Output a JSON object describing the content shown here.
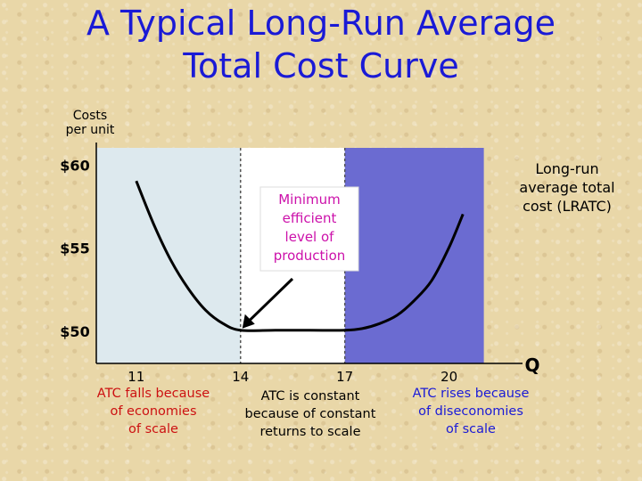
{
  "title": [
    "A Typical Long-Run Average",
    "Total Cost Curve"
  ],
  "chart_data": {
    "type": "line",
    "title": "A Typical Long-Run Average Total Cost Curve",
    "ylabel": [
      "Costs",
      "per unit"
    ],
    "xlabel": "Q",
    "x_ticks": [
      11,
      14,
      17,
      20
    ],
    "y_ticks": [
      50,
      55,
      60
    ],
    "y_tick_labels": [
      "$50",
      "$55",
      "$60"
    ],
    "xlim": [
      9.85,
      21.6
    ],
    "ylim": [
      48,
      61
    ],
    "series": [
      {
        "name": "LRATC",
        "x": [
          11,
          11.5,
          12,
          12.5,
          13,
          13.5,
          14,
          15,
          16,
          17,
          17.5,
          18,
          18.5,
          19,
          19.5,
          20,
          20.4
        ],
        "y": [
          59.0,
          56.4,
          54.2,
          52.5,
          51.2,
          50.4,
          50.0,
          50.0,
          50.0,
          50.0,
          50.1,
          50.4,
          50.9,
          51.8,
          53.0,
          55.0,
          57.0
        ]
      }
    ],
    "regions": [
      {
        "from": 9.85,
        "to": 14,
        "color": "#dde9ee"
      },
      {
        "from": 14,
        "to": 17,
        "color": "#ffffff"
      },
      {
        "from": 17,
        "to": 21.0,
        "color": "#6b6bd1"
      }
    ],
    "annotations": {
      "curve_label": [
        "Long-run",
        "average total",
        "cost (LRATC)"
      ],
      "mes_box": [
        "Minimum",
        "efficient",
        "level of",
        "production"
      ],
      "region_labels": [
        {
          "lines": [
            "ATC falls because",
            "of economies",
            "of scale"
          ],
          "color": "#cc1111"
        },
        {
          "lines": [
            "ATC is constant",
            "because of constant",
            "returns to scale"
          ],
          "color": "#000000"
        },
        {
          "lines": [
            "ATC rises because",
            "of diseconomies",
            "of scale"
          ],
          "color": "#1a1ad6"
        }
      ]
    },
    "colors": {
      "title": "#1a1ad6",
      "mes_text": "#cc11aa",
      "curve": "#000000"
    },
    "grid": false,
    "legend": "none"
  }
}
